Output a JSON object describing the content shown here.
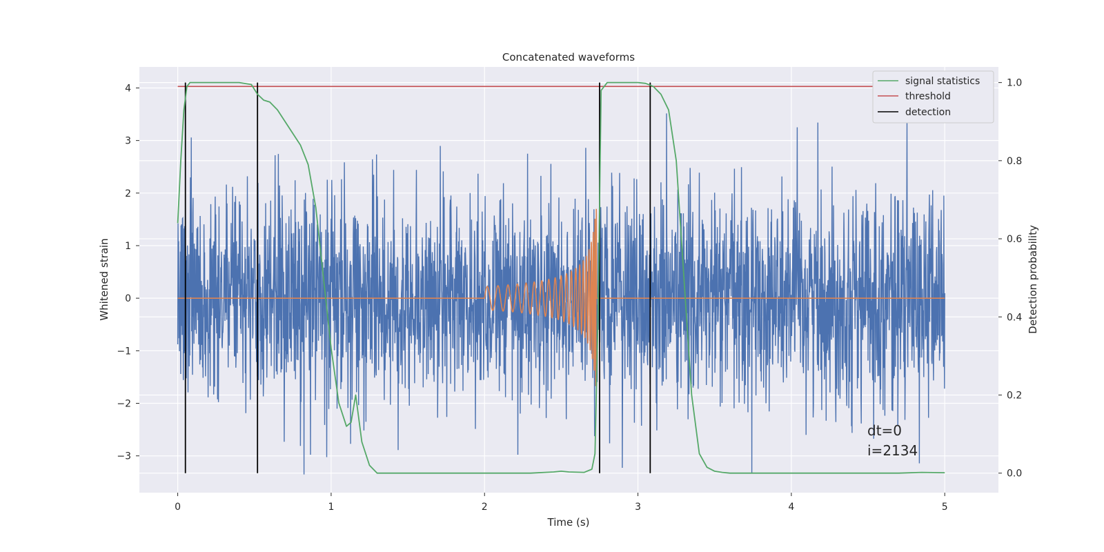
{
  "chart_data": {
    "type": "line",
    "title": "Concatenated waveforms",
    "xlabel": "Time (s)",
    "ylabel": "Whitened strain",
    "ylabel_right": "Detection probability",
    "xlim": [
      -0.25,
      5.35
    ],
    "ylim": [
      -3.7,
      4.4
    ],
    "ylim_right": [
      -0.05,
      1.04
    ],
    "x_ticks": [
      0,
      1,
      2,
      3,
      4,
      5
    ],
    "y_ticks": [
      -3,
      -2,
      -1,
      0,
      1,
      2,
      3,
      4
    ],
    "y_ticks_right": [
      0.0,
      0.2,
      0.4,
      0.6,
      0.8,
      1.0
    ],
    "x_tick_labels": [
      "0",
      "1",
      "2",
      "3",
      "4",
      "5"
    ],
    "y_tick_labels": [
      "−3",
      "−2",
      "−1",
      "0",
      "1",
      "2",
      "3",
      "4"
    ],
    "y_tick_labels_right": [
      "0.0",
      "0.2",
      "0.4",
      "0.6",
      "0.8",
      "1.0"
    ],
    "grid": true,
    "legend_position": "top-right",
    "colors": {
      "noise": "#4c72b0",
      "signal": "#dd8452",
      "statistics": "#55a868",
      "threshold": "#c44e52",
      "detection": "#000000",
      "background": "#eaeaf2"
    },
    "series": [
      {
        "name": "signal statistics",
        "axis": "right",
        "x": [
          0.0,
          0.02,
          0.04,
          0.06,
          0.08,
          0.1,
          0.15,
          0.2,
          0.3,
          0.4,
          0.48,
          0.52,
          0.56,
          0.6,
          0.65,
          0.7,
          0.75,
          0.8,
          0.85,
          0.9,
          0.95,
          1.0,
          1.05,
          1.1,
          1.13,
          1.16,
          1.2,
          1.25,
          1.3,
          1.4,
          1.6,
          2.0,
          2.3,
          2.45,
          2.5,
          2.55,
          2.65,
          2.7,
          2.72,
          2.74,
          2.76,
          2.8,
          2.9,
          3.0,
          3.05,
          3.1,
          3.15,
          3.2,
          3.25,
          3.3,
          3.35,
          3.4,
          3.45,
          3.5,
          3.55,
          3.6,
          3.8,
          4.0,
          4.5,
          4.7,
          4.85,
          5.0
        ],
        "y": [
          0.64,
          0.8,
          0.93,
          0.99,
          1.0,
          1.0,
          1.0,
          1.0,
          1.0,
          1.0,
          0.995,
          0.97,
          0.955,
          0.95,
          0.93,
          0.9,
          0.87,
          0.84,
          0.79,
          0.68,
          0.5,
          0.32,
          0.18,
          0.12,
          0.13,
          0.2,
          0.08,
          0.02,
          0.0,
          0.0,
          0.0,
          0.0,
          0.0,
          0.003,
          0.005,
          0.003,
          0.002,
          0.01,
          0.05,
          0.4,
          0.98,
          1.0,
          1.0,
          1.0,
          0.998,
          0.99,
          0.97,
          0.93,
          0.8,
          0.5,
          0.2,
          0.05,
          0.015,
          0.005,
          0.002,
          0.0,
          0.0,
          0.0,
          0.0,
          0.0,
          0.002,
          0.001
        ]
      },
      {
        "name": "threshold",
        "axis": "right",
        "x": [
          0.0,
          5.0
        ],
        "y": [
          0.99,
          0.99
        ]
      },
      {
        "name": "detection",
        "axis": "right",
        "type": "vlines",
        "x": [
          0.05,
          0.52,
          2.75,
          3.08
        ],
        "y_range": [
          0.0,
          1.0
        ]
      },
      {
        "axis": "left",
        "type": "noise",
        "x_range": [
          0.0,
          5.0
        ],
        "sigma": 1.0
      },
      {
        "axis": "left",
        "type": "chirp",
        "x_range": [
          0.0,
          5.0
        ],
        "chirp_start": 2.0,
        "chirp_end": 2.73,
        "peak_amplitude": 1.7
      }
    ],
    "annotations": [
      "dt=0",
      "i=2134"
    ]
  }
}
